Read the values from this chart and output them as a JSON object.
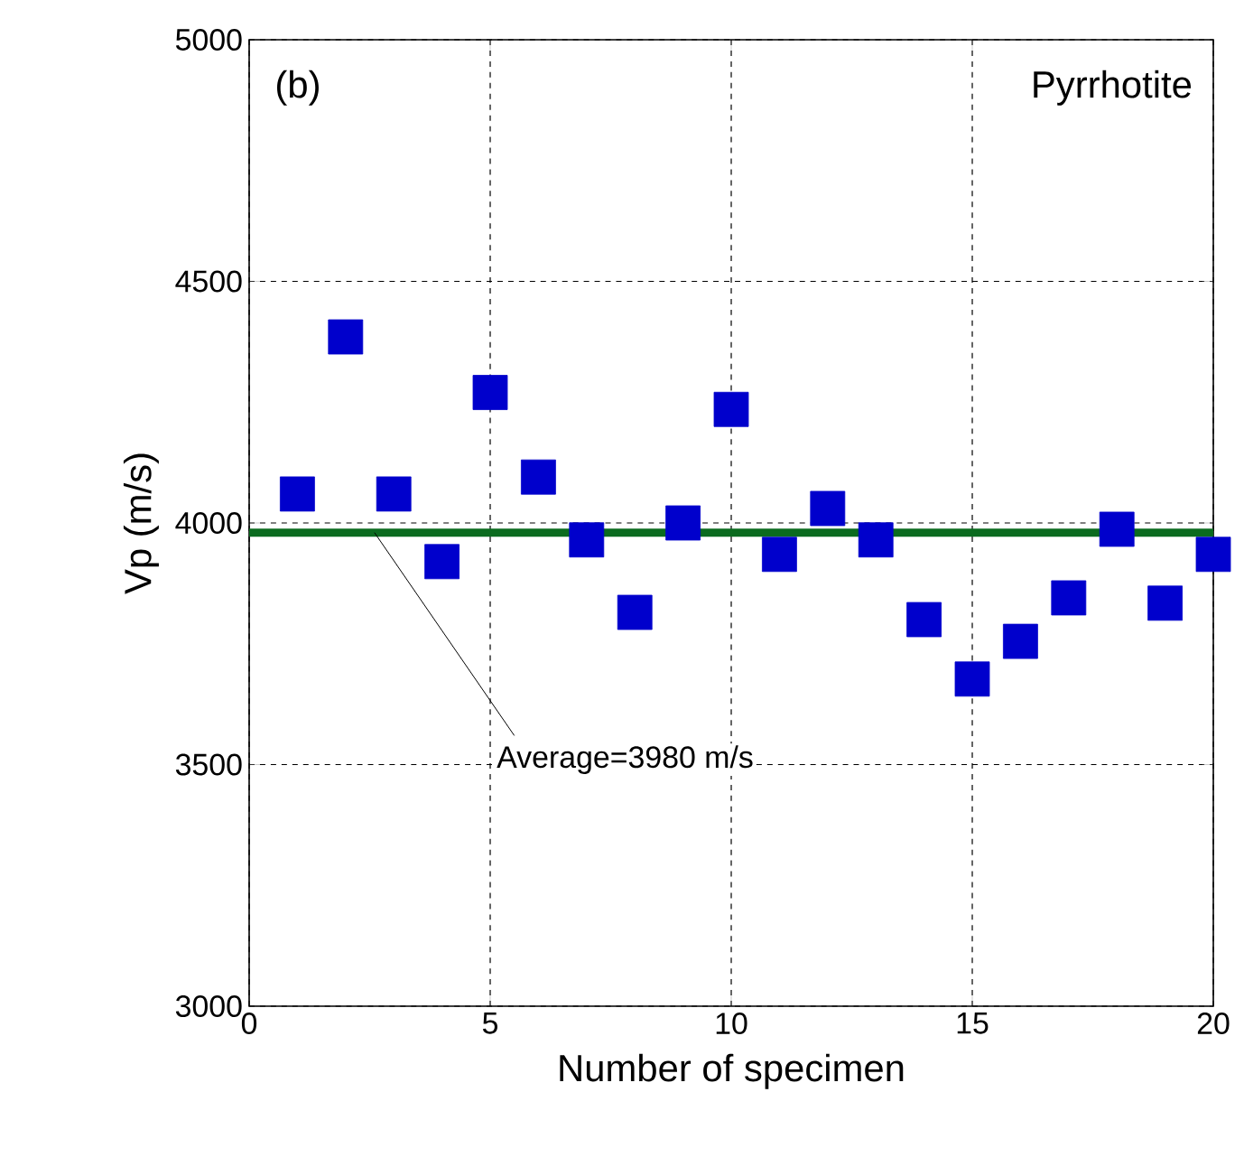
{
  "chart_data": {
    "type": "scatter",
    "xlabel": "Number of specimen",
    "ylabel": "Vp (m/s)",
    "x": [
      1,
      2,
      3,
      4,
      5,
      6,
      7,
      8,
      9,
      10,
      11,
      12,
      13,
      14,
      15,
      16,
      17,
      18,
      19,
      20
    ],
    "series": [
      {
        "color": "#0000cc",
        "values": [
          4060,
          4385,
          4060,
          3920,
          4270,
          4095,
          3965,
          3815,
          4000,
          4235,
          3935,
          4030,
          3965,
          3800,
          3677,
          3755,
          3845,
          3987,
          3834,
          3935
        ]
      }
    ],
    "marker": "square",
    "xlim": [
      0,
      20
    ],
    "ylim": [
      3000,
      5000
    ],
    "xticks": [
      0,
      5,
      10,
      15,
      20
    ],
    "yticks": [
      3000,
      3500,
      4000,
      4500,
      5000
    ],
    "grid": true,
    "ref_lines": [
      {
        "axis": "y",
        "value": 3980,
        "label": "Average=3980 m/s",
        "color": "#0b6b1f"
      }
    ],
    "annotations": [
      "(b)",
      "Pyrrhotite"
    ]
  }
}
